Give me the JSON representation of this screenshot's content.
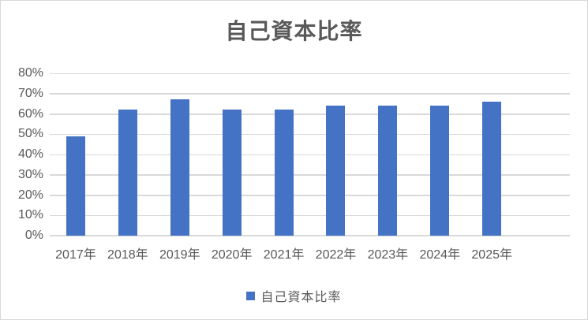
{
  "chart_data": {
    "type": "bar",
    "title": "自己資本比率",
    "categories": [
      "2017年",
      "2018年",
      "2019年",
      "2020年",
      "2021年",
      "2022年",
      "2023年",
      "2024年",
      "2025年"
    ],
    "values": [
      49,
      62,
      67,
      62,
      62,
      64,
      64,
      64,
      66
    ],
    "unit": "%",
    "xlabel": "",
    "ylabel": "",
    "ylim": [
      0,
      80
    ],
    "ytick_step": 10,
    "ytick_labels": [
      "0%",
      "10%",
      "20%",
      "30%",
      "40%",
      "50%",
      "60%",
      "70%",
      "80%"
    ],
    "grid": "horizontal",
    "empty_trailing_slots": 1,
    "legend": [
      {
        "label": "自己資本比率",
        "color": "#4472C4"
      }
    ],
    "legend_position": "bottom"
  },
  "colors": {
    "bar": "#4472C4",
    "gridline": "#D9D9D9",
    "axis_line": "#D9D9D9",
    "text": "#595959",
    "border": "#D9D9D9",
    "background": "#FFFFFF"
  }
}
